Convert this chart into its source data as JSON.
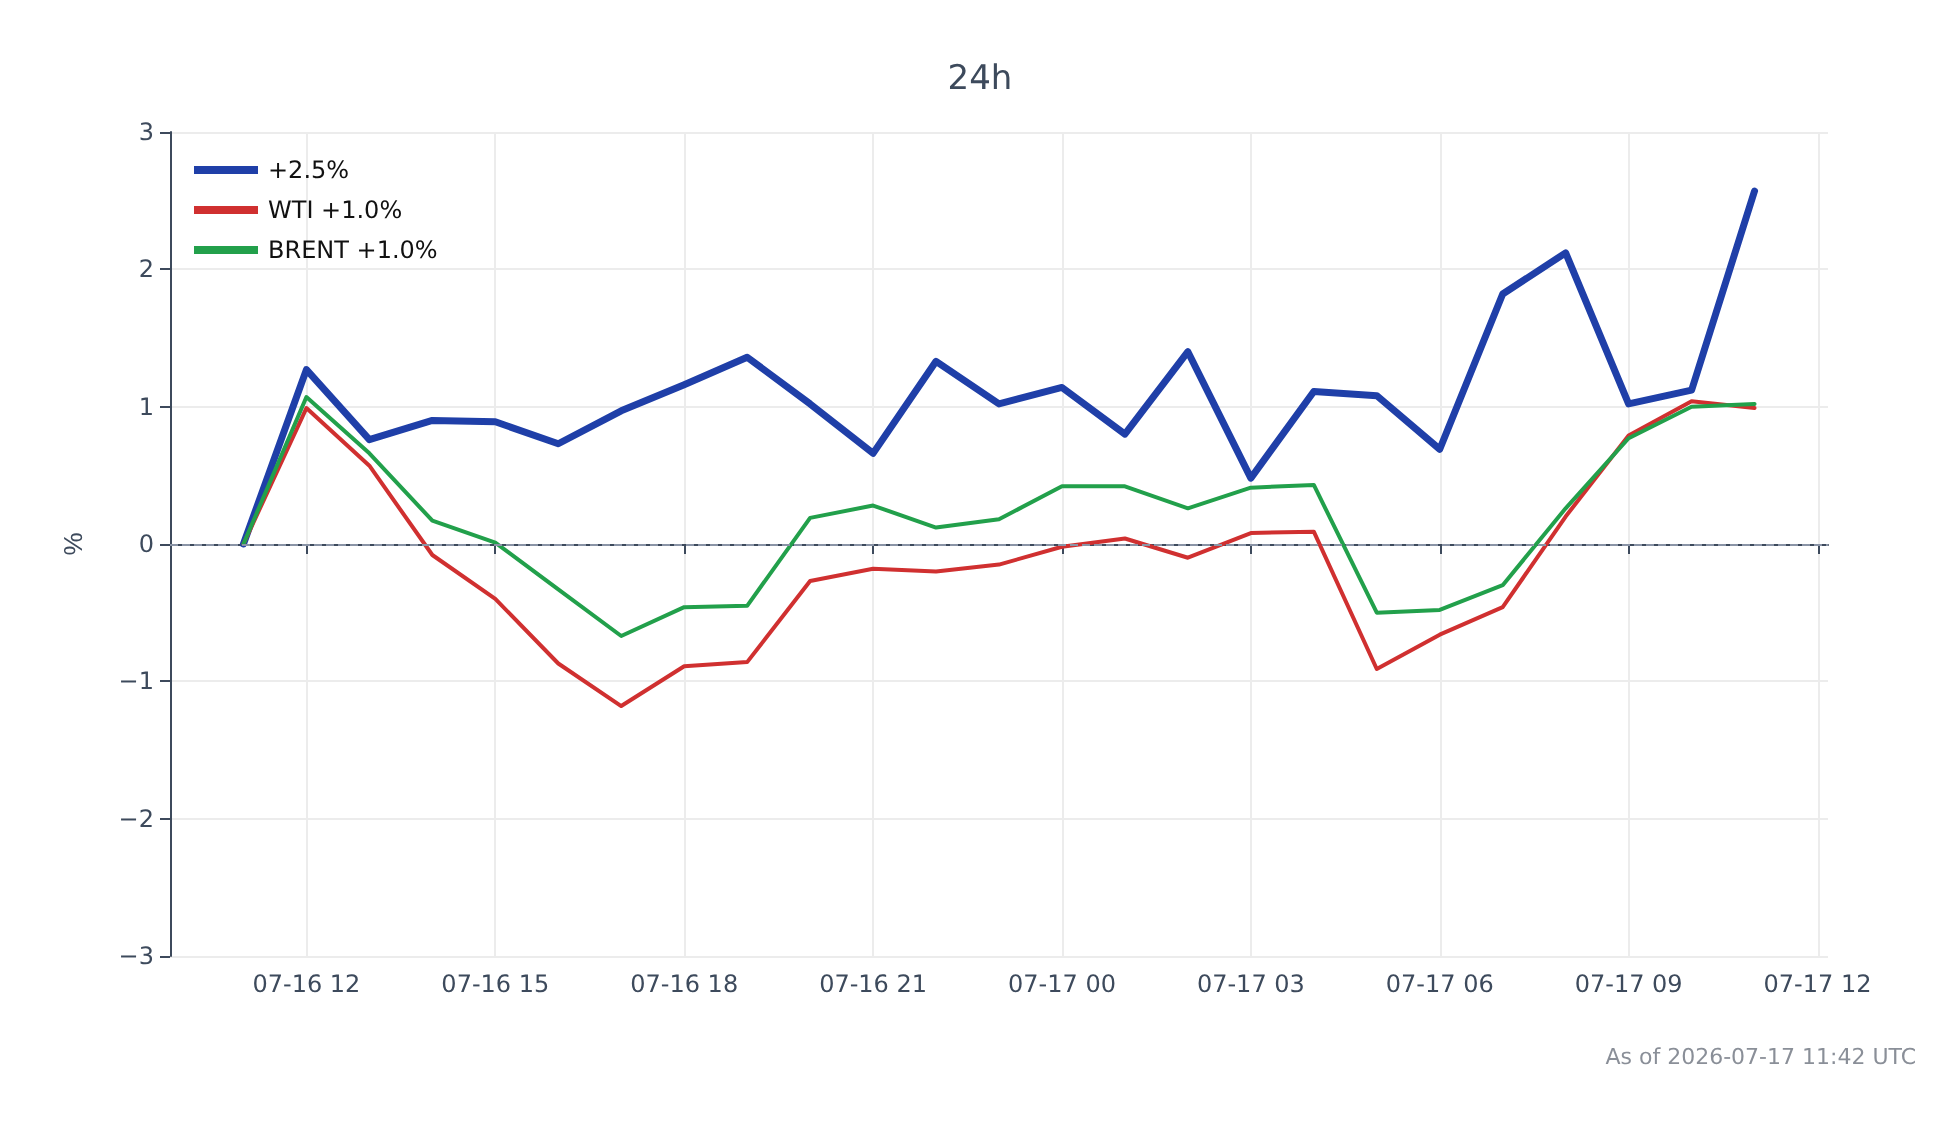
{
  "chart_data": {
    "type": "line",
    "title": "24h",
    "ylabel": "%",
    "x": [
      "2026-07-16T11:00",
      "2026-07-16T12:00",
      "2026-07-16T13:00",
      "2026-07-16T14:00",
      "2026-07-16T15:00",
      "2026-07-16T16:00",
      "2026-07-16T17:00",
      "2026-07-16T18:00",
      "2026-07-16T19:00",
      "2026-07-16T20:00",
      "2026-07-16T21:00",
      "2026-07-16T22:00",
      "2026-07-16T23:00",
      "2026-07-17T00:00",
      "2026-07-17T01:00",
      "2026-07-17T02:00",
      "2026-07-17T03:00",
      "2026-07-17T04:00",
      "2026-07-17T05:00",
      "2026-07-17T06:00",
      "2026-07-17T07:00",
      "2026-07-17T08:00",
      "2026-07-17T09:00",
      "2026-07-17T10:00",
      "2026-07-17T11:00"
    ],
    "series": [
      {
        "name": "+2.5%",
        "color": "#1f3fa8",
        "values": [
          0,
          1.27,
          0.76,
          0.9,
          0.89,
          0.73,
          0.97,
          1.16,
          1.36,
          1.02,
          0.66,
          1.33,
          1.02,
          1.14,
          0.8,
          1.4,
          0.48,
          1.11,
          1.08,
          0.69,
          1.82,
          2.12,
          1.02,
          1.12,
          2.57
        ]
      },
      {
        "name": "WTI +1.0%",
        "color": "#d03030",
        "values": [
          0,
          0.99,
          0.57,
          -0.08,
          -0.4,
          -0.87,
          -1.18,
          -0.89,
          -0.86,
          -0.27,
          -0.18,
          -0.2,
          -0.15,
          -0.02,
          0.04,
          -0.1,
          0.08,
          0.09,
          -0.91,
          -0.66,
          -0.46,
          0.2,
          0.79,
          1.04,
          0.99
        ]
      },
      {
        "name": "BRENT +1.0%",
        "color": "#22a04b",
        "values": [
          0,
          1.07,
          0.66,
          0.17,
          0.01,
          -0.33,
          -0.67,
          -0.46,
          -0.45,
          0.19,
          0.28,
          0.12,
          0.18,
          0.42,
          0.42,
          0.26,
          0.41,
          0.43,
          -0.5,
          -0.48,
          -0.3,
          0.26,
          0.77,
          1.0,
          1.02
        ]
      }
    ],
    "xlim": [
      "2026-07-16T09:50",
      "2026-07-17T12:10"
    ],
    "xticks": [
      {
        "value": "2026-07-16T12:00",
        "label": "07-16 12"
      },
      {
        "value": "2026-07-16T15:00",
        "label": "07-16 15"
      },
      {
        "value": "2026-07-16T18:00",
        "label": "07-16 18"
      },
      {
        "value": "2026-07-16T21:00",
        "label": "07-16 21"
      },
      {
        "value": "2026-07-17T00:00",
        "label": "07-17 00"
      },
      {
        "value": "2026-07-17T03:00",
        "label": "07-17 03"
      },
      {
        "value": "2026-07-17T06:00",
        "label": "07-17 06"
      },
      {
        "value": "2026-07-17T09:00",
        "label": "07-17 09"
      },
      {
        "value": "2026-07-17T12:00",
        "label": "07-17 12"
      }
    ],
    "ylim": [
      -3,
      3
    ],
    "yticks": [
      {
        "value": -3,
        "label": "−3"
      },
      {
        "value": -2,
        "label": "−2"
      },
      {
        "value": -1,
        "label": "−1"
      },
      0,
      1,
      2,
      3
    ],
    "ref_lines": [
      {
        "axis": "y",
        "value": 0,
        "color": "#8a94a6",
        "line_style": "dashed"
      }
    ],
    "grid": true,
    "legend": "top left",
    "marker": "none",
    "line_style": "solid",
    "annotations": [
      "As of 2026-07-17 11:42 UTC"
    ]
  }
}
